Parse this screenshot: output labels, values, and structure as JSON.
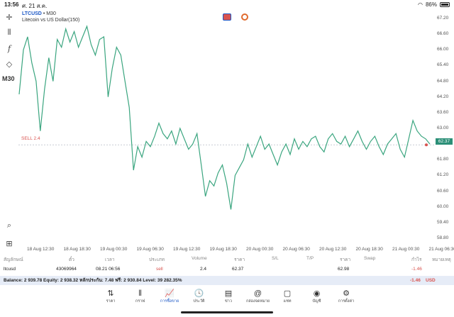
{
  "status": {
    "time": "13:56",
    "date": "ศ. 21 ส.ค.",
    "wifi_icon": "wifi-icon",
    "battery": "86%"
  },
  "toolbar": {
    "items": [
      "crosshair-icon",
      "chart-type-icon",
      "indicator-icon",
      "objects-icon"
    ],
    "timeframe": "M30",
    "zoom_icon": "zoom-icon",
    "add_icon": "add-icon"
  },
  "chart": {
    "symbol": "LTCUSD",
    "timeframe_label": " • M30",
    "description": "Litecoin vs US Dollar(150)",
    "sell_label": "SELL 2.4",
    "current_price_tag": "62.37",
    "colors": {
      "line": "#3aa57f",
      "sell": "#d9534f",
      "price_tag": "#2b8f77"
    }
  },
  "chart_data": {
    "type": "line",
    "series": [
      {
        "values": [
          64.3,
          66.0,
          66.5,
          65.5,
          64.8,
          62.9,
          64.5,
          65.7,
          64.8,
          66.4,
          66.1,
          66.8,
          66.3,
          66.7,
          66.1,
          66.5,
          66.9,
          66.2,
          65.8,
          66.4,
          66.5,
          64.2,
          65.3,
          66.1,
          65.8,
          64.8,
          63.8,
          61.4,
          62.3,
          61.9,
          62.5,
          62.3,
          62.7,
          63.2,
          62.8,
          62.6,
          62.9,
          62.4,
          63.0,
          62.6,
          62.2,
          62.4,
          62.8,
          61.6,
          60.4,
          61.0,
          60.8,
          61.3,
          61.6,
          60.9,
          59.9,
          61.2,
          61.5,
          61.8,
          62.4,
          61.9,
          62.3,
          62.7,
          62.2,
          62.4,
          62.0,
          61.6,
          62.1,
          62.4,
          62.0,
          62.6,
          62.2,
          62.5,
          62.3,
          62.6,
          62.7,
          62.3,
          62.1,
          62.6,
          62.8,
          62.5,
          62.4,
          62.7,
          62.3,
          62.6,
          62.9,
          62.5,
          62.2,
          62.5,
          62.7,
          62.3,
          62.0,
          62.4,
          62.6,
          62.8,
          62.2,
          61.9,
          62.6,
          63.3,
          62.9,
          62.7,
          62.6,
          62.4
        ]
      }
    ],
    "price_ticks": [
      "67.20",
      "66.60",
      "66.00",
      "65.40",
      "64.80",
      "64.20",
      "63.60",
      "63.00",
      "62.40",
      "61.80",
      "61.20",
      "60.60",
      "60.00",
      "59.40",
      "58.80"
    ],
    "time_ticks": [
      "18 Aug 12:30",
      "18 Aug 18:30",
      "19 Aug 00:30",
      "19 Aug 06:30",
      "19 Aug 12:30",
      "19 Aug 18:30",
      "20 Aug 00:30",
      "20 Aug 06:30",
      "20 Aug 12:30",
      "20 Aug 18:30",
      "21 Aug 00:30",
      "21 Aug 06:30"
    ],
    "ylim": [
      58.5,
      67.5
    ],
    "sell_level": 62.37,
    "grid": false
  },
  "trades": {
    "headers": [
      "สัญลักษณ์",
      "ตั๋ว",
      "เวลา",
      "ประเภท",
      "Volume",
      "ราคา",
      "S/L",
      "T/P",
      "ราคา",
      "Swap",
      "กำไร",
      "หมายเหตุ"
    ],
    "rows": [
      {
        "symbol": "ltcusd",
        "ticket": "43069964",
        "time": "08.21 06:56",
        "type": "sell",
        "volume": "2.4",
        "open_price": "62.37",
        "sl": "",
        "tp": "",
        "price": "62.98",
        "swap": "",
        "profit": "-1.46",
        "comment": ""
      }
    ],
    "balance_line": "Balance: 2 939.78 Equity: 2 938.32 หลักประกัน: 7.48 ฟรี: 2 930.84 Level: 39 282.35%",
    "total_profit": "-1.46",
    "currency": "USD"
  },
  "nav": {
    "items": [
      {
        "label": "ราคา",
        "icon": "quotes-icon"
      },
      {
        "label": "กราฟ",
        "icon": "chart-icon"
      },
      {
        "label": "การซื้อขาย",
        "icon": "trade-icon"
      },
      {
        "label": "ประวัติ",
        "icon": "history-icon"
      },
      {
        "label": "ข่าว",
        "icon": "news-icon"
      },
      {
        "label": "กล่องจดหมาย",
        "icon": "mail-icon"
      },
      {
        "label": "แชท",
        "icon": "chat-icon"
      },
      {
        "label": "บัญชี",
        "icon": "account-icon"
      },
      {
        "label": "การตั้งค่า",
        "icon": "settings-icon"
      }
    ],
    "active_index": 2
  }
}
